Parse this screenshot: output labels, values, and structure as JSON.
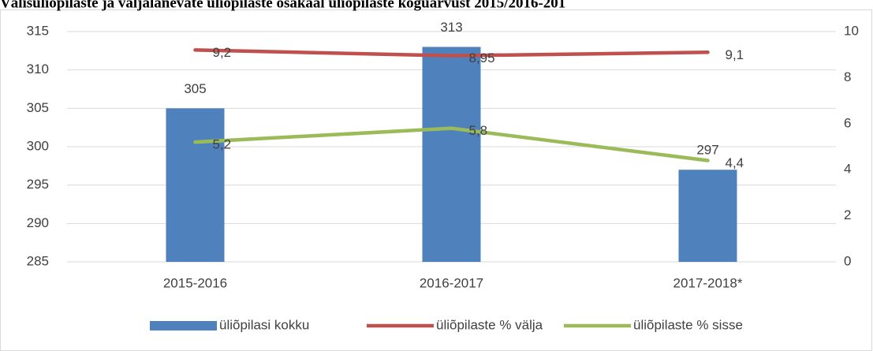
{
  "chart_data": {
    "type": "bar_line",
    "title": "Välisüliõpilaste ja väljalanevate üliõpilaste osakaal üliõpilaste koguarvust 2015/2016-201",
    "categories": [
      "2015-2016",
      "2016-2017",
      "2017-2018*"
    ],
    "series": [
      {
        "name": "üliõpilasi kokku",
        "color": "#4f81bd",
        "type": "bar",
        "values": [
          305,
          313,
          297
        ]
      },
      {
        "name": "üliõpilaste % välja",
        "color": "#c0504d",
        "type": "line",
        "axis": "y2",
        "values": [
          9.2,
          8.95,
          9.1
        ],
        "value_labels": [
          "9,2",
          "8,95",
          "9,1"
        ]
      },
      {
        "name": "üliõpilaste % sisse",
        "color": "#9bbb59",
        "type": "line",
        "axis": "y2",
        "values": [
          5.2,
          5.8,
          4.4
        ],
        "value_labels": [
          "5,2",
          "5,8",
          "4,4"
        ]
      }
    ],
    "ylim": [
      285,
      315
    ],
    "yticks": [
      285,
      290,
      295,
      300,
      305,
      310,
      315
    ],
    "y2lim": [
      0,
      10
    ],
    "y2ticks": [
      0,
      2,
      4,
      6,
      8,
      10
    ],
    "grid": true,
    "legend": "bottom"
  }
}
